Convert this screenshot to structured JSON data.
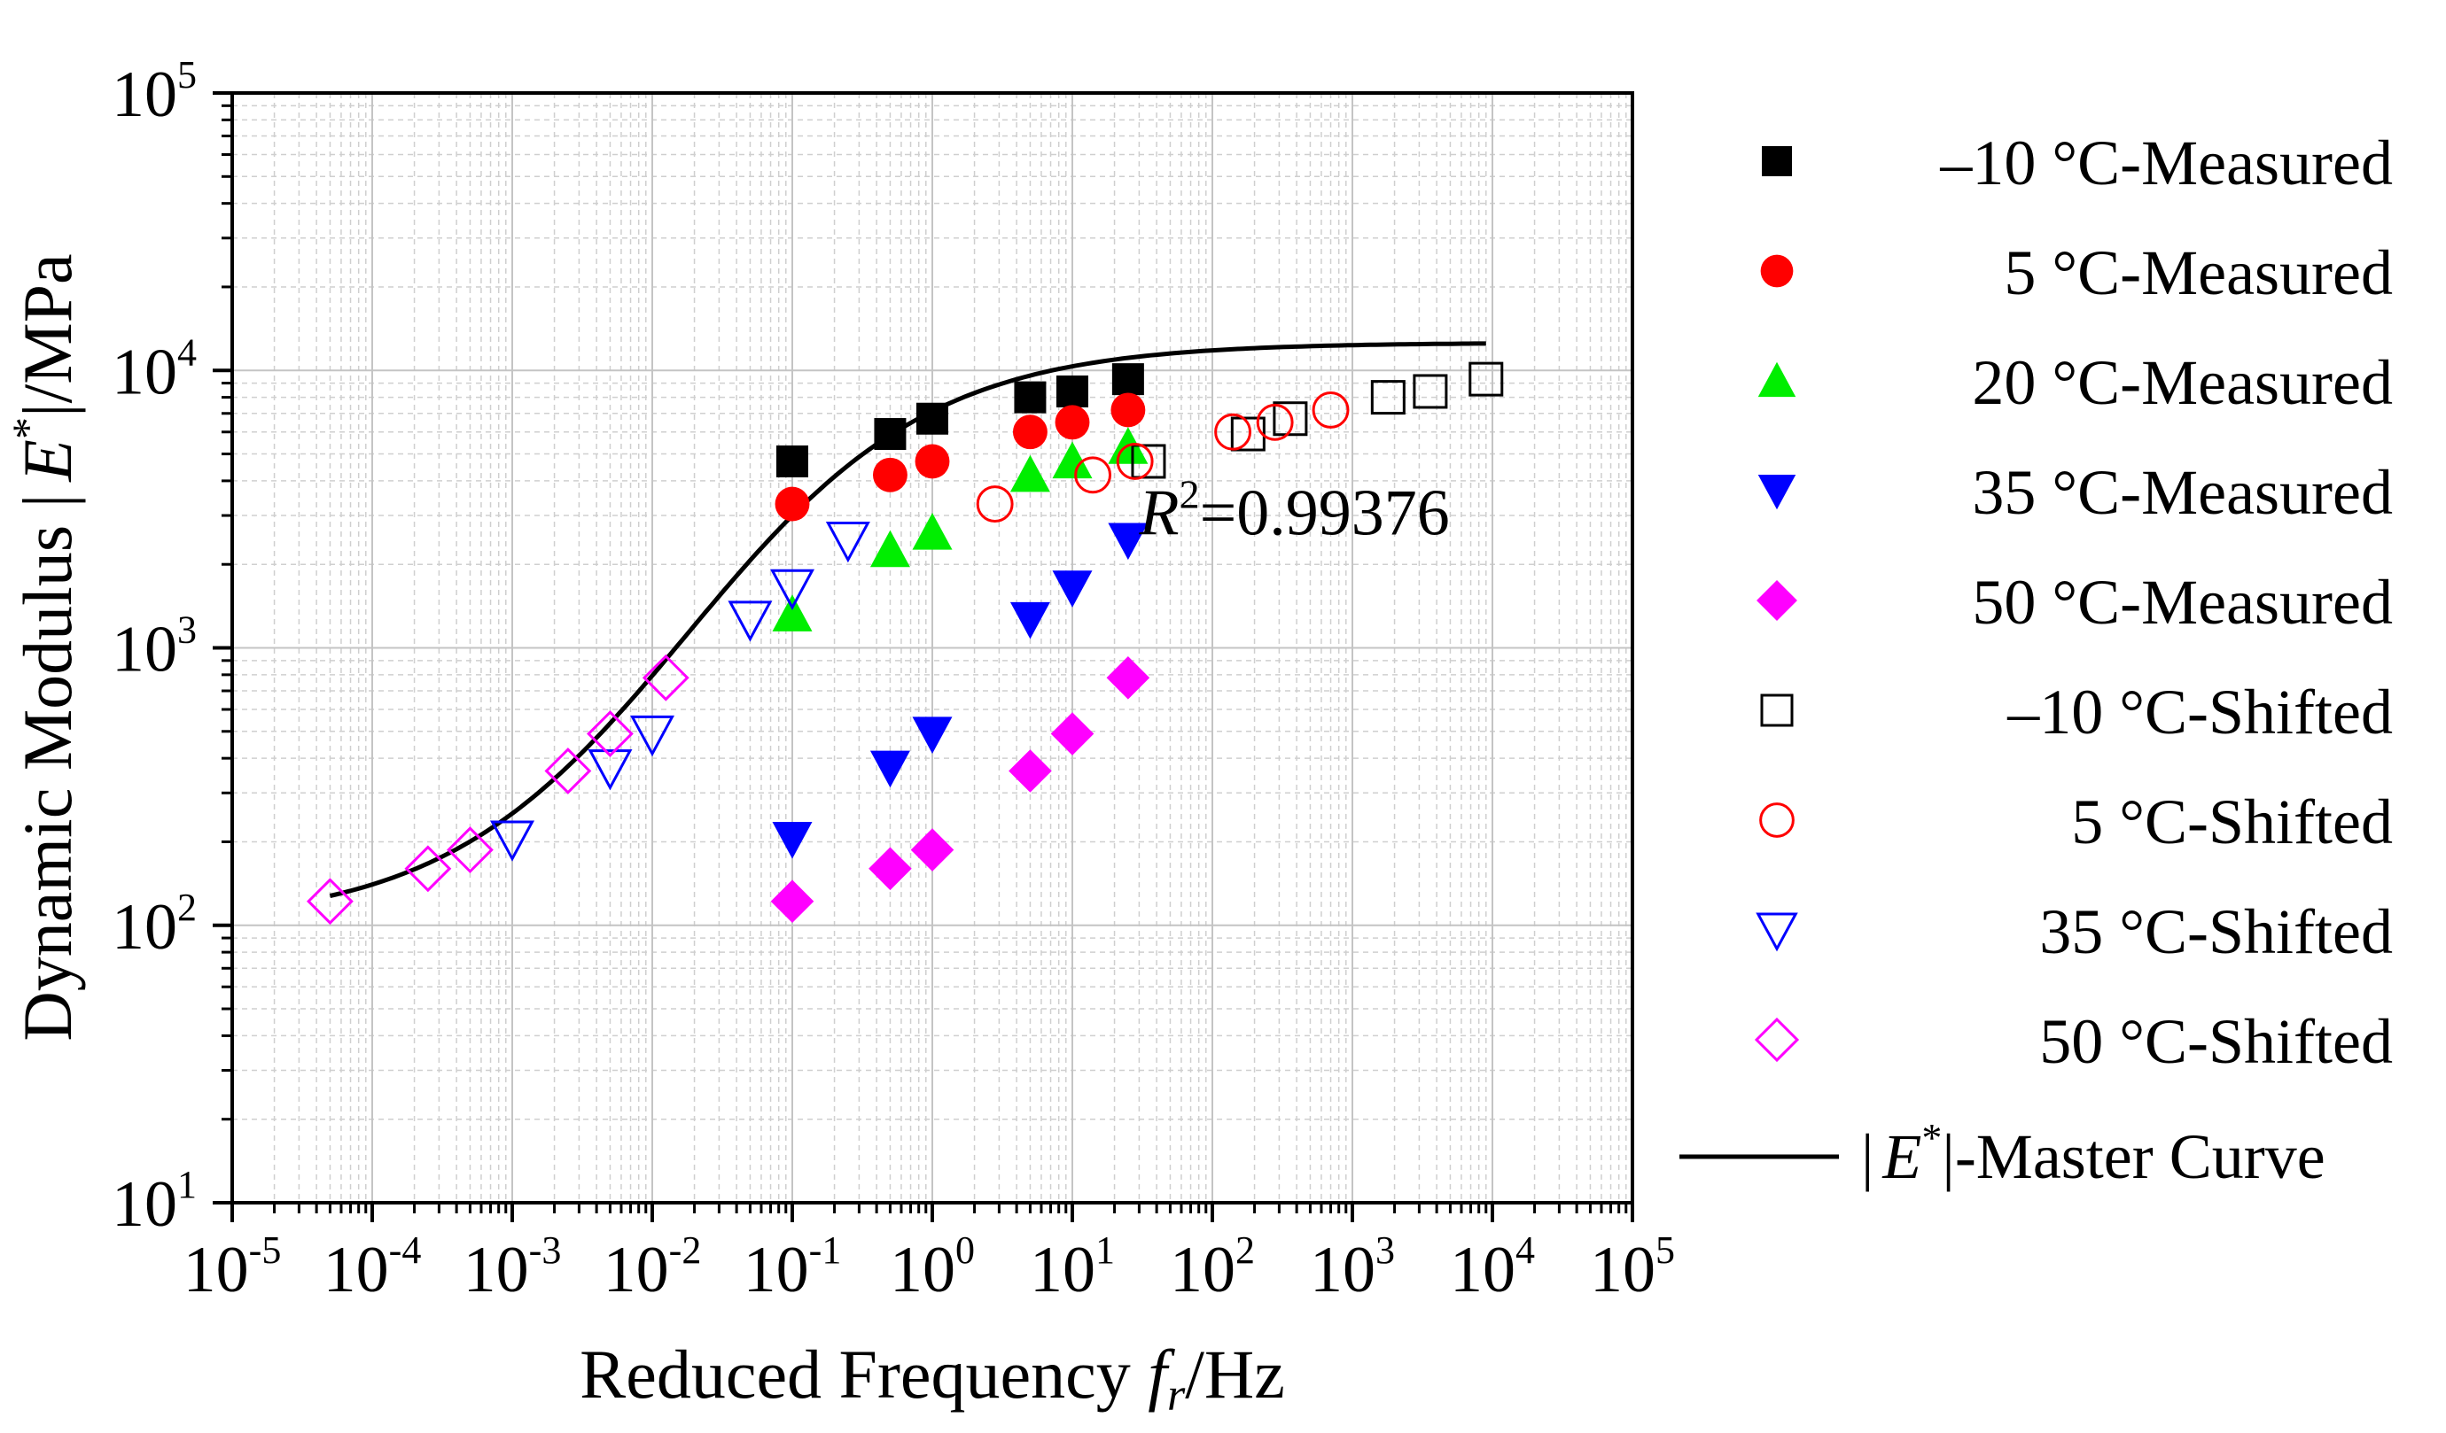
{
  "chart_data": {
    "type": "scatter",
    "xlabel": {
      "prefix": "Reduced Frequency ",
      "var": "f",
      "sub": "r",
      "suffix": "/Hz"
    },
    "ylabel": {
      "prefix": "Dynamic Modulus |",
      "var": "E",
      "sup": "*",
      "suffix": "|/MPa"
    },
    "x_scale": "log",
    "y_scale": "log",
    "xlim": [
      1e-05,
      100000
    ],
    "ylim": [
      10,
      100000
    ],
    "x_ticks": [
      {
        "value": 1e-05,
        "base": "10",
        "exp": "-5"
      },
      {
        "value": 0.0001,
        "base": "10",
        "exp": "-4"
      },
      {
        "value": 0.001,
        "base": "10",
        "exp": "-3"
      },
      {
        "value": 0.01,
        "base": "10",
        "exp": "-2"
      },
      {
        "value": 0.1,
        "base": "10",
        "exp": "-1"
      },
      {
        "value": 1,
        "base": "10",
        "exp": "0"
      },
      {
        "value": 10,
        "base": "10",
        "exp": "1"
      },
      {
        "value": 100,
        "base": "10",
        "exp": "2"
      },
      {
        "value": 1000,
        "base": "10",
        "exp": "3"
      },
      {
        "value": 10000,
        "base": "10",
        "exp": "4"
      },
      {
        "value": 100000,
        "base": "10",
        "exp": "5"
      }
    ],
    "y_ticks": [
      {
        "value": 10,
        "base": "10",
        "exp": "1"
      },
      {
        "value": 100,
        "base": "10",
        "exp": "2"
      },
      {
        "value": 1000,
        "base": "10",
        "exp": "3"
      },
      {
        "value": 10000,
        "base": "10",
        "exp": "4"
      },
      {
        "value": 100000,
        "base": "10",
        "exp": "5"
      }
    ],
    "grid": true,
    "legend_position": "right",
    "annotation": {
      "var": "R",
      "sup": "2",
      "value": "=0.99376",
      "at": [
        30,
        3100
      ]
    },
    "series": [
      {
        "name": "–10 °C-Measured",
        "marker": "square",
        "filled": true,
        "color": "#000000",
        "x": [
          0.1,
          0.5,
          1,
          5,
          10,
          25
        ],
        "y": [
          4700,
          5900,
          6700,
          8000,
          8400,
          9300
        ]
      },
      {
        "name": "5 °C-Measured",
        "marker": "circle",
        "filled": true,
        "color": "#ff0000",
        "x": [
          0.1,
          0.5,
          1,
          5,
          10,
          25
        ],
        "y": [
          3300,
          4200,
          4700,
          6000,
          6500,
          7200
        ]
      },
      {
        "name": "20 °C-Measured",
        "marker": "triangle-up",
        "filled": true,
        "color": "#00ee00",
        "x": [
          0.1,
          0.5,
          1,
          5,
          10,
          25
        ],
        "y": [
          1320,
          2250,
          2600,
          4200,
          4700,
          5300
        ]
      },
      {
        "name": "35 °C-Measured",
        "marker": "triangle-down",
        "filled": true,
        "color": "#0000ff",
        "x": [
          0.1,
          0.5,
          1,
          5,
          10,
          25
        ],
        "y": [
          205,
          370,
          490,
          1270,
          1650,
          2450
        ]
      },
      {
        "name": "50 °C-Measured",
        "marker": "diamond",
        "filled": true,
        "color": "#ff00ff",
        "x": [
          0.1,
          0.5,
          1,
          5,
          10,
          25
        ],
        "y": [
          122,
          160,
          187,
          360,
          490,
          780
        ]
      },
      {
        "name": "–10 °C-Shifted",
        "marker": "square",
        "filled": false,
        "color": "#000000",
        "x": [
          180,
          360,
          1800,
          3600,
          9000,
          35
        ],
        "y": [
          5900,
          6700,
          8000,
          8400,
          9300,
          4700
        ]
      },
      {
        "name": "5 °C-Shifted",
        "marker": "circle",
        "filled": false,
        "color": "#ff0000",
        "x": [
          2.8,
          14,
          28,
          140,
          280,
          700
        ],
        "y": [
          3300,
          4200,
          4700,
          6000,
          6500,
          7200
        ]
      },
      {
        "name": "35 °C-Shifted",
        "marker": "triangle-down",
        "filled": false,
        "color": "#0000ff",
        "x": [
          0.001,
          0.005,
          0.01,
          0.05,
          0.1,
          0.25
        ],
        "y": [
          205,
          370,
          490,
          1270,
          1650,
          2450
        ]
      },
      {
        "name": "50 °C-Shifted",
        "marker": "diamond",
        "filled": false,
        "color": "#ff00ff",
        "x": [
          5e-05,
          0.00025,
          0.0005,
          0.0025,
          0.005,
          0.0125
        ],
        "y": [
          122,
          160,
          187,
          360,
          490,
          780
        ]
      },
      {
        "name": "|E*|-Master Curve",
        "marker": "line",
        "filled": false,
        "color": "#000000",
        "legend_parts": {
          "prefix": "|",
          "var": "E",
          "sup": "*",
          "suffix": "|-Master Curve"
        },
        "model": {
          "type": "sigmoid",
          "log_min": 2.0,
          "log_max": 4.1,
          "log_x_center": -1.75,
          "slope": 1.15
        },
        "x_range": [
          5e-05,
          9000
        ]
      }
    ]
  }
}
